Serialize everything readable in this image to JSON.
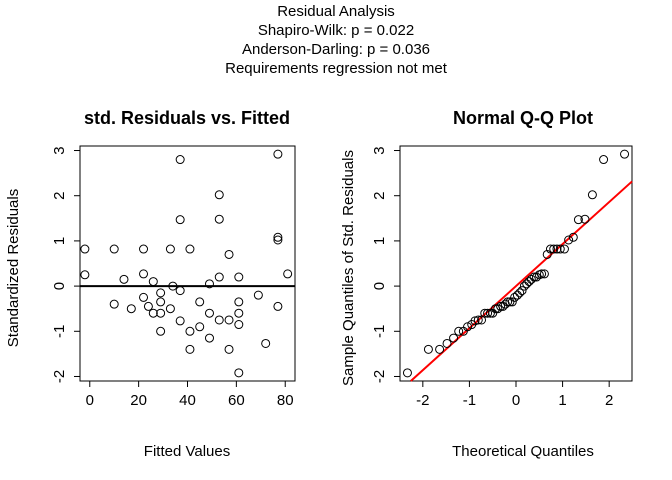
{
  "figure": {
    "title_lines": [
      "Residual Analysis",
      "Shapiro-Wilk: p =  0.022",
      "Anderson-Darling: p =  0.036",
      "Requirements regression not met"
    ]
  },
  "chart_data": [
    {
      "type": "scatter",
      "title": "std. Residuals vs. Fitted",
      "xlabel": "Fitted Values",
      "ylabel": "Standardized Residuals",
      "xlim": [
        -4,
        84
      ],
      "ylim": [
        -2.1,
        3.1
      ],
      "xticks": [
        0,
        20,
        40,
        60,
        80
      ],
      "xtick_labels": [
        "0",
        "20",
        "40",
        "60",
        "80"
      ],
      "yticks": [
        -2,
        -1,
        0,
        1,
        2,
        3
      ],
      "ytick_labels": [
        "-2",
        "-1",
        "0",
        "1",
        "2",
        "3"
      ],
      "grid": false,
      "reference_line": {
        "y": 0,
        "color": "#000000"
      },
      "points": [
        {
          "x": -2,
          "y": 0.82
        },
        {
          "x": -2,
          "y": 0.25
        },
        {
          "x": 10,
          "y": 0.82
        },
        {
          "x": 10,
          "y": -0.4
        },
        {
          "x": 14,
          "y": 0.15
        },
        {
          "x": 17,
          "y": -0.5
        },
        {
          "x": 22,
          "y": 0.82
        },
        {
          "x": 22,
          "y": 0.27
        },
        {
          "x": 22,
          "y": -0.25
        },
        {
          "x": 24,
          "y": -0.45
        },
        {
          "x": 26,
          "y": 0.1
        },
        {
          "x": 26,
          "y": -0.6
        },
        {
          "x": 29,
          "y": -0.15
        },
        {
          "x": 29,
          "y": -0.6
        },
        {
          "x": 29,
          "y": -1.0
        },
        {
          "x": 29,
          "y": -0.35
        },
        {
          "x": 33,
          "y": 0.82
        },
        {
          "x": 33,
          "y": -0.5
        },
        {
          "x": 34,
          "y": 0.0
        },
        {
          "x": 37,
          "y": 2.8
        },
        {
          "x": 37,
          "y": 1.47
        },
        {
          "x": 37,
          "y": -0.1
        },
        {
          "x": 37,
          "y": -0.77
        },
        {
          "x": 41,
          "y": 0.82
        },
        {
          "x": 41,
          "y": -1.0
        },
        {
          "x": 41,
          "y": -1.4
        },
        {
          "x": 45,
          "y": -0.35
        },
        {
          "x": 45,
          "y": -0.9
        },
        {
          "x": 49,
          "y": 0.05
        },
        {
          "x": 49,
          "y": -0.6
        },
        {
          "x": 49,
          "y": -1.15
        },
        {
          "x": 53,
          "y": 2.02
        },
        {
          "x": 53,
          "y": 1.48
        },
        {
          "x": 53,
          "y": 0.2
        },
        {
          "x": 53,
          "y": -0.75
        },
        {
          "x": 57,
          "y": 0.7
        },
        {
          "x": 57,
          "y": -0.75
        },
        {
          "x": 57,
          "y": -1.4
        },
        {
          "x": 61,
          "y": 0.2
        },
        {
          "x": 61,
          "y": -0.35
        },
        {
          "x": 61,
          "y": -0.6
        },
        {
          "x": 61,
          "y": -0.85
        },
        {
          "x": 61,
          "y": -1.92
        },
        {
          "x": 69,
          "y": -0.2
        },
        {
          "x": 72,
          "y": -1.27
        },
        {
          "x": 77,
          "y": 2.92
        },
        {
          "x": 77,
          "y": 1.08
        },
        {
          "x": 77,
          "y": 1.02
        },
        {
          "x": 77,
          "y": -0.45
        },
        {
          "x": 81,
          "y": 0.27
        }
      ]
    },
    {
      "type": "scatter",
      "title": "Normal Q-Q Plot",
      "xlabel": "Theoretical Quantiles",
      "ylabel": "Sample Quantiles of Std. Residuals",
      "xlim": [
        -2.49,
        2.49
      ],
      "ylim": [
        -2.1,
        3.1
      ],
      "xticks": [
        -2,
        -1,
        0,
        1,
        2
      ],
      "xtick_labels": [
        "-2",
        "-1",
        "0",
        "1",
        "2"
      ],
      "yticks": [
        -2,
        -1,
        0,
        1,
        2,
        3
      ],
      "ytick_labels": [
        "-2",
        "-1",
        "0",
        "1",
        "2",
        "3"
      ],
      "grid": false,
      "reference_line": {
        "intercept": 0.0,
        "slope": 0.93,
        "color": "#ff0000"
      },
      "points": [
        {
          "x": -2.33,
          "y": -1.92
        },
        {
          "x": -1.88,
          "y": -1.4
        },
        {
          "x": -1.64,
          "y": -1.4
        },
        {
          "x": -1.48,
          "y": -1.27
        },
        {
          "x": -1.34,
          "y": -1.15
        },
        {
          "x": -1.23,
          "y": -1.0
        },
        {
          "x": -1.13,
          "y": -1.0
        },
        {
          "x": -1.04,
          "y": -0.9
        },
        {
          "x": -0.95,
          "y": -0.85
        },
        {
          "x": -0.88,
          "y": -0.77
        },
        {
          "x": -0.81,
          "y": -0.75
        },
        {
          "x": -0.74,
          "y": -0.75
        },
        {
          "x": -0.67,
          "y": -0.6
        },
        {
          "x": -0.61,
          "y": -0.6
        },
        {
          "x": -0.55,
          "y": -0.6
        },
        {
          "x": -0.5,
          "y": -0.6
        },
        {
          "x": -0.44,
          "y": -0.5
        },
        {
          "x": -0.39,
          "y": -0.5
        },
        {
          "x": -0.33,
          "y": -0.45
        },
        {
          "x": -0.28,
          "y": -0.45
        },
        {
          "x": -0.23,
          "y": -0.4
        },
        {
          "x": -0.18,
          "y": -0.35
        },
        {
          "x": -0.13,
          "y": -0.35
        },
        {
          "x": -0.08,
          "y": -0.35
        },
        {
          "x": -0.03,
          "y": -0.25
        },
        {
          "x": 0.03,
          "y": -0.2
        },
        {
          "x": 0.08,
          "y": -0.15
        },
        {
          "x": 0.13,
          "y": -0.1
        },
        {
          "x": 0.18,
          "y": 0.0
        },
        {
          "x": 0.23,
          "y": 0.05
        },
        {
          "x": 0.28,
          "y": 0.1
        },
        {
          "x": 0.33,
          "y": 0.15
        },
        {
          "x": 0.39,
          "y": 0.2
        },
        {
          "x": 0.44,
          "y": 0.2
        },
        {
          "x": 0.5,
          "y": 0.25
        },
        {
          "x": 0.55,
          "y": 0.27
        },
        {
          "x": 0.61,
          "y": 0.27
        },
        {
          "x": 0.67,
          "y": 0.7
        },
        {
          "x": 0.74,
          "y": 0.82
        },
        {
          "x": 0.81,
          "y": 0.82
        },
        {
          "x": 0.88,
          "y": 0.82
        },
        {
          "x": 0.95,
          "y": 0.82
        },
        {
          "x": 1.04,
          "y": 0.82
        },
        {
          "x": 1.13,
          "y": 1.02
        },
        {
          "x": 1.23,
          "y": 1.08
        },
        {
          "x": 1.34,
          "y": 1.47
        },
        {
          "x": 1.48,
          "y": 1.48
        },
        {
          "x": 1.64,
          "y": 2.02
        },
        {
          "x": 1.88,
          "y": 2.8
        },
        {
          "x": 2.33,
          "y": 2.92
        }
      ]
    }
  ]
}
